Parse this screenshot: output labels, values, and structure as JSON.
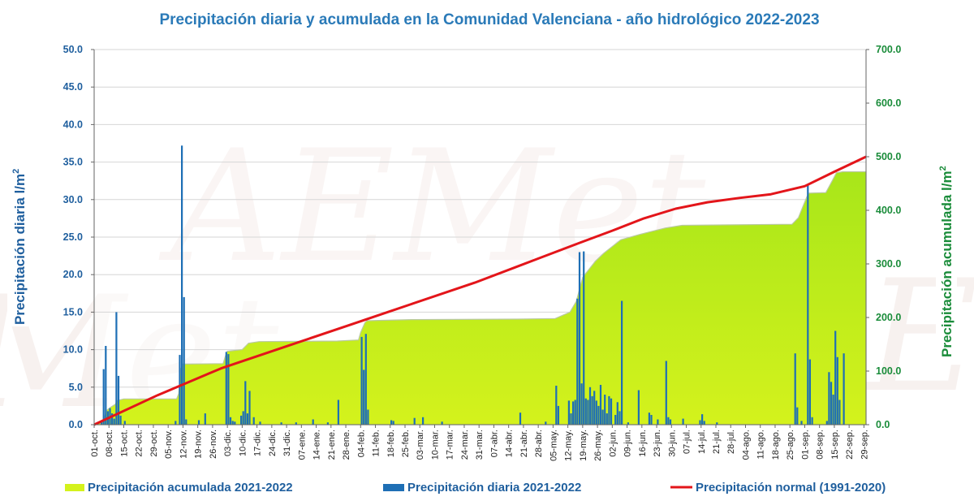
{
  "colors": {
    "accumulated_fill": "#d4f21c",
    "accumulated_fill_top": "#a8e61a",
    "daily_bar": "#1e6fb5",
    "normal_line": "#e3151a",
    "title": "#2a7ab8",
    "left_axis": "#1f5f9e",
    "right_axis": "#1a8c3a"
  },
  "chart_data": {
    "type": "bar",
    "title": "Precipitación diaria y acumulada en la Comunidad Valenciana - año hidrológico 2022-2023",
    "ylabel_left": "Precipitación diaria l/m2",
    "ylabel_right": "Precipitación acumulada l/m2",
    "ylabel_unit_base": "l/m",
    "ylabel_unit_sup": "2",
    "ylabel_left_text": "Precipitación diaria ",
    "ylabel_right_text": "Precipitación acumulada ",
    "ylim_left": [
      0,
      50
    ],
    "ylim_right": [
      0,
      700
    ],
    "yticks_left": [
      "0.0",
      "5.0",
      "10.0",
      "15.0",
      "20.0",
      "25.0",
      "30.0",
      "35.0",
      "40.0",
      "45.0",
      "50.0"
    ],
    "yticks_right": [
      "0.0",
      "100.0",
      "200.0",
      "300.0",
      "400.0",
      "500.0",
      "600.0",
      "700.0"
    ],
    "x_tick_labels": [
      "01-oct.",
      "08-oct.",
      "15-oct.",
      "22-oct.",
      "29-oct.",
      "05-nov.",
      "12-nov.",
      "19-nov.",
      "26-nov.",
      "03-dic.",
      "10-dic.",
      "17-dic.",
      "24-dic.",
      "31-dic.",
      "07-ene.",
      "14-ene.",
      "21-ene.",
      "28-ene.",
      "04-feb.",
      "11-feb.",
      "18-feb.",
      "25-feb.",
      "03-mar.",
      "10-mar.",
      "17-mar.",
      "24-mar.",
      "31-mar.",
      "07-abr.",
      "14-abr.",
      "21-abr.",
      "28-abr.",
      "05-may.",
      "12-may.",
      "19-may.",
      "26-may.",
      "02-jun.",
      "09-jun.",
      "16-jun.",
      "23-jun.",
      "30-jun.",
      "07-jul.",
      "14-jul.",
      "21-jul.",
      "28-jul.",
      "04-ago.",
      "11-ago.",
      "18-ago.",
      "25-ago.",
      "01-sep.",
      "08-sep.",
      "15-sep.",
      "22-sep.",
      "29-sep."
    ],
    "x_days": 365,
    "grid": true,
    "legend_position": "bottom",
    "legend": [
      {
        "label": "Precipitación acumulada 2021-2022",
        "kind": "area"
      },
      {
        "label": "Precipitación diaria 2021-2022",
        "kind": "bar"
      },
      {
        "label": "Precipitación normal (1991-2020)",
        "kind": "line"
      }
    ],
    "series": [
      {
        "name": "Precipitación diaria 2021-2022",
        "axis": "left",
        "type": "bar",
        "points": [
          [
            3,
            0.5
          ],
          [
            4,
            7.4
          ],
          [
            5,
            10.5
          ],
          [
            6,
            1.8
          ],
          [
            7,
            2.2
          ],
          [
            8,
            1.5
          ],
          [
            9,
            0.8
          ],
          [
            10,
            15.0
          ],
          [
            11,
            6.5
          ],
          [
            12,
            1.2
          ],
          [
            14,
            0.5
          ],
          [
            38,
            0.5
          ],
          [
            40,
            9.3
          ],
          [
            41,
            37.2
          ],
          [
            42,
            17.0
          ],
          [
            43,
            0.7
          ],
          [
            49,
            0.6
          ],
          [
            52,
            1.5
          ],
          [
            62,
            9.7
          ],
          [
            63,
            9.4
          ],
          [
            64,
            1.0
          ],
          [
            65,
            0.5
          ],
          [
            66,
            0.4
          ],
          [
            69,
            1.2
          ],
          [
            70,
            1.8
          ],
          [
            71,
            5.8
          ],
          [
            72,
            1.5
          ],
          [
            73,
            4.5
          ],
          [
            75,
            1.0
          ],
          [
            78,
            0.4
          ],
          [
            88,
            0.3
          ],
          [
            95,
            0.3
          ],
          [
            103,
            0.7
          ],
          [
            110,
            0.3
          ],
          [
            115,
            3.3
          ],
          [
            126,
            11.7
          ],
          [
            127,
            7.3
          ],
          [
            128,
            12.1
          ],
          [
            129,
            2.0
          ],
          [
            140,
            0.6
          ],
          [
            141,
            0.5
          ],
          [
            151,
            0.9
          ],
          [
            155,
            1.0
          ],
          [
            164,
            0.4
          ],
          [
            201,
            1.6
          ],
          [
            213,
            0.4
          ],
          [
            218,
            5.2
          ],
          [
            219,
            2.5
          ],
          [
            224,
            3.2
          ],
          [
            225,
            1.5
          ],
          [
            226,
            3.1
          ],
          [
            227,
            3.3
          ],
          [
            228,
            16.8
          ],
          [
            229,
            23.0
          ],
          [
            230,
            5.5
          ],
          [
            231,
            23.1
          ],
          [
            232,
            3.5
          ],
          [
            233,
            3.3
          ],
          [
            234,
            5.0
          ],
          [
            235,
            3.8
          ],
          [
            236,
            4.5
          ],
          [
            237,
            3.2
          ],
          [
            238,
            2.5
          ],
          [
            239,
            5.3
          ],
          [
            240,
            2.0
          ],
          [
            241,
            4.0
          ],
          [
            242,
            1.5
          ],
          [
            243,
            3.8
          ],
          [
            244,
            3.5
          ],
          [
            246,
            1.3
          ],
          [
            247,
            3.0
          ],
          [
            248,
            1.8
          ],
          [
            249,
            16.5
          ],
          [
            252,
            0.3
          ],
          [
            257,
            4.6
          ],
          [
            262,
            1.6
          ],
          [
            263,
            1.3
          ],
          [
            266,
            0.7
          ],
          [
            270,
            8.5
          ],
          [
            271,
            1.0
          ],
          [
            272,
            0.7
          ],
          [
            278,
            0.8
          ],
          [
            286,
            0.6
          ],
          [
            287,
            1.4
          ],
          [
            288,
            0.5
          ],
          [
            294,
            0.3
          ],
          [
            331,
            9.5
          ],
          [
            332,
            2.3
          ],
          [
            334,
            0.5
          ],
          [
            337,
            32.0
          ],
          [
            338,
            8.7
          ],
          [
            339,
            1.0
          ],
          [
            346,
            0.5
          ],
          [
            347,
            7.0
          ],
          [
            348,
            5.7
          ],
          [
            349,
            4.0
          ],
          [
            350,
            12.5
          ],
          [
            351,
            9.0
          ],
          [
            352,
            3.3
          ],
          [
            354,
            9.5
          ]
        ]
      },
      {
        "name": "Precipitación acumulada 2021-2022",
        "axis": "right",
        "type": "area",
        "points": [
          [
            0,
            0
          ],
          [
            4,
            5
          ],
          [
            5,
            15
          ],
          [
            6,
            27
          ],
          [
            8,
            33
          ],
          [
            10,
            38
          ],
          [
            11,
            45
          ],
          [
            14,
            48
          ],
          [
            39,
            48
          ],
          [
            40,
            58
          ],
          [
            41,
            104
          ],
          [
            42,
            113
          ],
          [
            61,
            114
          ],
          [
            62,
            127
          ],
          [
            63,
            137
          ],
          [
            70,
            140
          ],
          [
            73,
            152
          ],
          [
            78,
            155
          ],
          [
            115,
            156
          ],
          [
            125,
            158
          ],
          [
            126,
            172
          ],
          [
            128,
            190
          ],
          [
            129,
            194
          ],
          [
            150,
            196
          ],
          [
            200,
            197
          ],
          [
            218,
            198
          ],
          [
            225,
            210
          ],
          [
            228,
            230
          ],
          [
            231,
            275
          ],
          [
            234,
            290
          ],
          [
            237,
            305
          ],
          [
            241,
            320
          ],
          [
            249,
            345
          ],
          [
            258,
            355
          ],
          [
            270,
            367
          ],
          [
            278,
            372
          ],
          [
            330,
            374
          ],
          [
            333,
            386
          ],
          [
            337,
            425
          ],
          [
            338,
            432
          ],
          [
            346,
            433
          ],
          [
            349,
            455
          ],
          [
            351,
            470
          ],
          [
            354,
            472
          ],
          [
            365,
            472
          ]
        ]
      },
      {
        "name": "Precipitación normal (1991-2020)",
        "axis": "right",
        "type": "line",
        "points": [
          [
            0,
            0
          ],
          [
            30,
            55
          ],
          [
            60,
            105
          ],
          [
            90,
            145
          ],
          [
            120,
            185
          ],
          [
            150,
            225
          ],
          [
            180,
            265
          ],
          [
            210,
            310
          ],
          [
            230,
            340
          ],
          [
            245,
            362
          ],
          [
            260,
            385
          ],
          [
            275,
            403
          ],
          [
            290,
            415
          ],
          [
            305,
            423
          ],
          [
            320,
            430
          ],
          [
            336,
            445
          ],
          [
            350,
            472
          ],
          [
            365,
            500
          ]
        ]
      }
    ]
  }
}
